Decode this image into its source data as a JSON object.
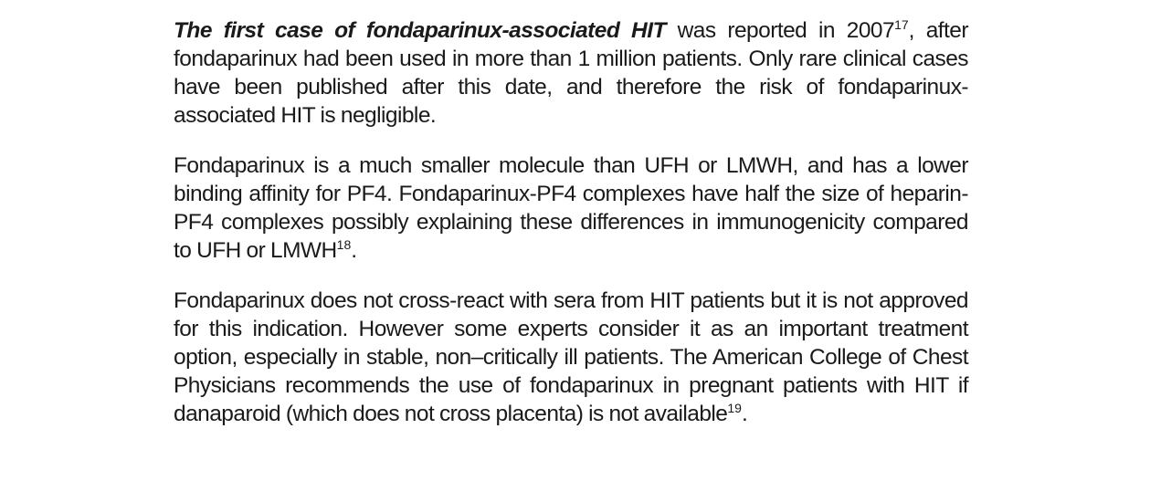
{
  "paragraphs": [
    {
      "lead": "The first case of fondaparinux-associated HIT",
      "text_a": " was reported in 2007",
      "sup_a": "17",
      "text_b": ", after fondaparinux had been used in more than 1 million patients. Only rare clinical cases have been published after this date, and therefore the risk of fondaparinux-associated HIT is negligible."
    },
    {
      "text_a": "Fondaparinux is a much smaller molecule than UFH or LMWH, and has a lower binding affinity for PF4. Fondaparinux-PF4 complexes have half the size of heparin-PF4 complexes possibly explaining these differences in immunogenicity compared to UFH or LMWH",
      "sup_a": "18",
      "text_b": "."
    },
    {
      "text_a": "Fondaparinux does not cross-react with sera from HIT patients but it is not approved for this indication. However some experts consider it as an important treatment option, especially in stable, non–critically ill patients. The American College of Chest Physicians recommends the use of fondaparinux in pregnant patients with HIT if danaparoid (which does not cross placenta) is not available",
      "sup_a": "19",
      "text_b": "."
    }
  ]
}
